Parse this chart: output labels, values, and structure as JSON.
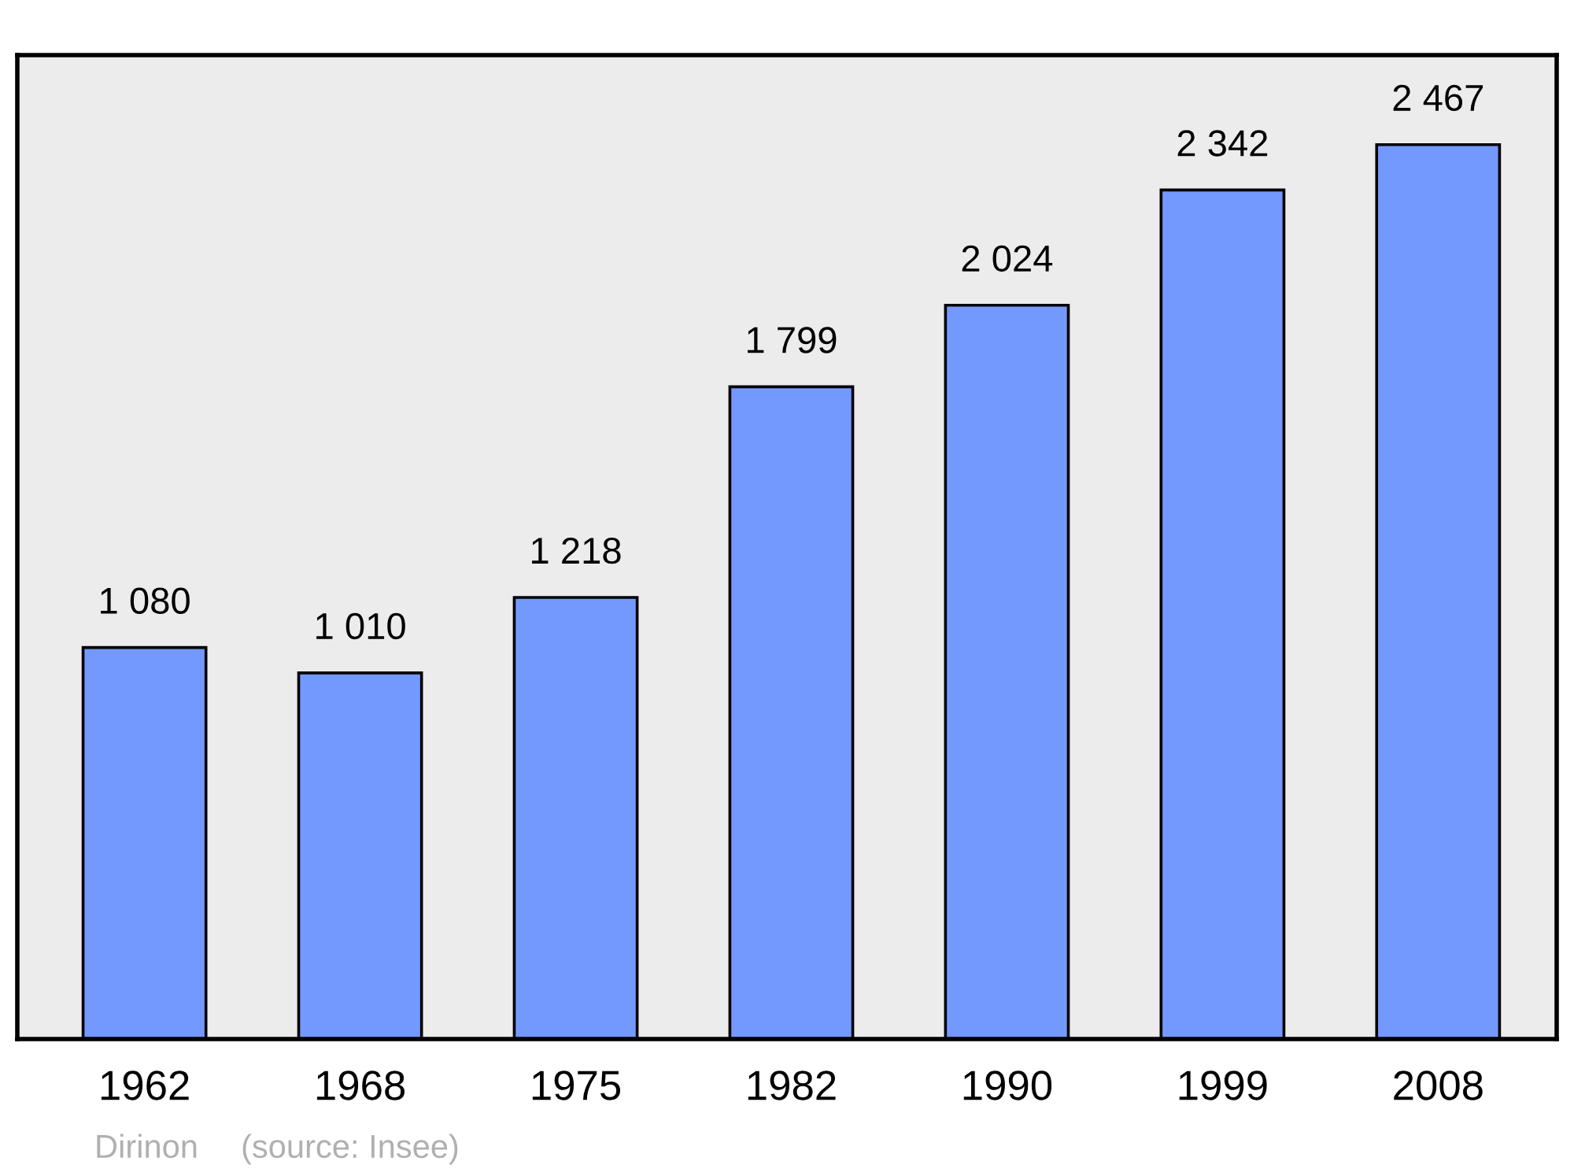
{
  "chart_data": {
    "type": "bar",
    "categories": [
      "1962",
      "1968",
      "1975",
      "1982",
      "1990",
      "1999",
      "2008"
    ],
    "values": [
      1080,
      1010,
      1218,
      1799,
      2024,
      2342,
      2467
    ],
    "value_labels": [
      "1 080",
      "1 010",
      "1 218",
      "1 799",
      "2 024",
      "2 342",
      "2 467"
    ],
    "color": "#7399ff",
    "ylim": [
      0,
      2714
    ],
    "tick_labels": "x",
    "grid": false,
    "annotations": [
      "Dirinon",
      "(source: Insee)"
    ]
  }
}
